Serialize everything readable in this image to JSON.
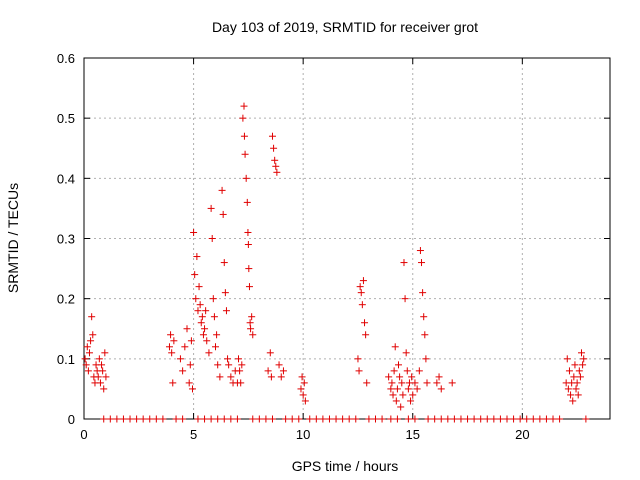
{
  "chart_data": {
    "type": "scatter",
    "title": "Day 103 of 2019, SRMTID for receiver grot",
    "xlabel": "GPS time / hours",
    "ylabel": "SRMTID / TECUs",
    "xlim": [
      0,
      24
    ],
    "ylim": [
      0,
      0.6
    ],
    "xticks": [
      0,
      5,
      10,
      15,
      20
    ],
    "yticks": [
      0,
      0.1,
      0.2,
      0.3,
      0.4,
      0.5,
      0.6
    ],
    "xtick_labels": [
      "0",
      "5",
      "10",
      "15",
      "20"
    ],
    "ytick_labels": [
      "0",
      "0.1",
      "0.2",
      "0.3",
      "0.4",
      "0.5",
      "0.6"
    ],
    "grid": true,
    "marker": "+",
    "color": "#e00000",
    "series": [
      {
        "name": "SRMTID",
        "points": [
          [
            0.05,
            0.1
          ],
          [
            0.1,
            0.09
          ],
          [
            0.15,
            0.12
          ],
          [
            0.2,
            0.08
          ],
          [
            0.25,
            0.11
          ],
          [
            0.3,
            0.13
          ],
          [
            0.35,
            0.17
          ],
          [
            0.4,
            0.14
          ],
          [
            0.45,
            0.07
          ],
          [
            0.5,
            0.06
          ],
          [
            0.55,
            0.09
          ],
          [
            0.6,
            0.08
          ],
          [
            0.65,
            0.07
          ],
          [
            0.7,
            0.1
          ],
          [
            0.75,
            0.06
          ],
          [
            0.8,
            0.09
          ],
          [
            0.85,
            0.08
          ],
          [
            0.9,
            0.05
          ],
          [
            0.95,
            0.11
          ],
          [
            1.0,
            0.07
          ],
          [
            3.9,
            0.12
          ],
          [
            3.95,
            0.14
          ],
          [
            4.0,
            0.11
          ],
          [
            4.05,
            0.06
          ],
          [
            4.1,
            0.13
          ],
          [
            4.4,
            0.1
          ],
          [
            4.5,
            0.08
          ],
          [
            4.6,
            0.12
          ],
          [
            4.7,
            0.15
          ],
          [
            4.8,
            0.06
          ],
          [
            4.85,
            0.09
          ],
          [
            4.9,
            0.13
          ],
          [
            4.95,
            0.05
          ],
          [
            5.0,
            0.31
          ],
          [
            5.05,
            0.24
          ],
          [
            5.1,
            0.2
          ],
          [
            5.15,
            0.27
          ],
          [
            5.2,
            0.18
          ],
          [
            5.25,
            0.22
          ],
          [
            5.3,
            0.19
          ],
          [
            5.35,
            0.16
          ],
          [
            5.4,
            0.17
          ],
          [
            5.45,
            0.14
          ],
          [
            5.5,
            0.15
          ],
          [
            5.55,
            0.18
          ],
          [
            5.6,
            0.13
          ],
          [
            5.7,
            0.11
          ],
          [
            5.8,
            0.35
          ],
          [
            5.85,
            0.3
          ],
          [
            5.9,
            0.2
          ],
          [
            5.95,
            0.17
          ],
          [
            6.0,
            0.12
          ],
          [
            6.05,
            0.14
          ],
          [
            6.1,
            0.09
          ],
          [
            6.2,
            0.07
          ],
          [
            6.3,
            0.38
          ],
          [
            6.35,
            0.34
          ],
          [
            6.4,
            0.26
          ],
          [
            6.45,
            0.21
          ],
          [
            6.5,
            0.18
          ],
          [
            6.55,
            0.1
          ],
          [
            6.6,
            0.09
          ],
          [
            6.7,
            0.07
          ],
          [
            6.8,
            0.06
          ],
          [
            6.9,
            0.08
          ],
          [
            7.0,
            0.06
          ],
          [
            7.05,
            0.1
          ],
          [
            7.1,
            0.08
          ],
          [
            7.15,
            0.06
          ],
          [
            7.2,
            0.09
          ],
          [
            7.25,
            0.5
          ],
          [
            7.3,
            0.52
          ],
          [
            7.32,
            0.47
          ],
          [
            7.35,
            0.44
          ],
          [
            7.4,
            0.4
          ],
          [
            7.45,
            0.36
          ],
          [
            7.48,
            0.31
          ],
          [
            7.5,
            0.29
          ],
          [
            7.52,
            0.25
          ],
          [
            7.55,
            0.22
          ],
          [
            7.58,
            0.16
          ],
          [
            7.6,
            0.15
          ],
          [
            7.65,
            0.17
          ],
          [
            7.7,
            0.14
          ],
          [
            8.4,
            0.08
          ],
          [
            8.5,
            0.11
          ],
          [
            8.55,
            0.07
          ],
          [
            8.6,
            0.47
          ],
          [
            8.65,
            0.45
          ],
          [
            8.7,
            0.43
          ],
          [
            8.75,
            0.42
          ],
          [
            8.8,
            0.41
          ],
          [
            8.9,
            0.09
          ],
          [
            9.0,
            0.07
          ],
          [
            9.1,
            0.08
          ],
          [
            9.9,
            0.05
          ],
          [
            9.95,
            0.07
          ],
          [
            10.0,
            0.04
          ],
          [
            10.05,
            0.06
          ],
          [
            10.1,
            0.03
          ],
          [
            12.5,
            0.1
          ],
          [
            12.55,
            0.08
          ],
          [
            12.6,
            0.22
          ],
          [
            12.65,
            0.21
          ],
          [
            12.7,
            0.19
          ],
          [
            12.75,
            0.23
          ],
          [
            12.8,
            0.16
          ],
          [
            12.85,
            0.14
          ],
          [
            12.9,
            0.06
          ],
          [
            13.9,
            0.07
          ],
          [
            14.0,
            0.05
          ],
          [
            14.05,
            0.06
          ],
          [
            14.1,
            0.04
          ],
          [
            14.15,
            0.08
          ],
          [
            14.2,
            0.12
          ],
          [
            14.25,
            0.03
          ],
          [
            14.3,
            0.05
          ],
          [
            14.35,
            0.09
          ],
          [
            14.4,
            0.07
          ],
          [
            14.45,
            0.02
          ],
          [
            14.5,
            0.06
          ],
          [
            14.55,
            0.04
          ],
          [
            14.6,
            0.26
          ],
          [
            14.65,
            0.2
          ],
          [
            14.7,
            0.11
          ],
          [
            14.75,
            0.08
          ],
          [
            14.8,
            0.05
          ],
          [
            14.85,
            0.06
          ],
          [
            14.9,
            0.03
          ],
          [
            14.95,
            0.07
          ],
          [
            15.0,
            0.04
          ],
          [
            15.1,
            0.06
          ],
          [
            15.2,
            0.05
          ],
          [
            15.3,
            0.08
          ],
          [
            15.35,
            0.28
          ],
          [
            15.4,
            0.26
          ],
          [
            15.45,
            0.21
          ],
          [
            15.5,
            0.17
          ],
          [
            15.55,
            0.14
          ],
          [
            15.6,
            0.1
          ],
          [
            15.65,
            0.06
          ],
          [
            16.1,
            0.06
          ],
          [
            16.2,
            0.07
          ],
          [
            16.3,
            0.05
          ],
          [
            16.8,
            0.06
          ],
          [
            22.0,
            0.06
          ],
          [
            22.05,
            0.1
          ],
          [
            22.1,
            0.05
          ],
          [
            22.15,
            0.08
          ],
          [
            22.2,
            0.04
          ],
          [
            22.25,
            0.06
          ],
          [
            22.3,
            0.03
          ],
          [
            22.35,
            0.07
          ],
          [
            22.4,
            0.09
          ],
          [
            22.45,
            0.05
          ],
          [
            22.5,
            0.06
          ],
          [
            22.55,
            0.04
          ],
          [
            22.6,
            0.08
          ],
          [
            22.65,
            0.07
          ],
          [
            22.7,
            0.11
          ],
          [
            22.75,
            0.09
          ],
          [
            22.8,
            0.1
          ]
        ]
      },
      {
        "name": "zero baseline",
        "points": [
          [
            0.9,
            0
          ],
          [
            1.2,
            0
          ],
          [
            1.5,
            0
          ],
          [
            1.8,
            0
          ],
          [
            2.1,
            0
          ],
          [
            2.4,
            0
          ],
          [
            2.7,
            0
          ],
          [
            3.0,
            0
          ],
          [
            3.3,
            0
          ],
          [
            3.6,
            0
          ],
          [
            4.2,
            0
          ],
          [
            4.5,
            0
          ],
          [
            5.2,
            0
          ],
          [
            5.5,
            0
          ],
          [
            5.8,
            0
          ],
          [
            6.1,
            0
          ],
          [
            6.4,
            0
          ],
          [
            6.7,
            0
          ],
          [
            7.0,
            0
          ],
          [
            7.7,
            0
          ],
          [
            8.0,
            0
          ],
          [
            8.3,
            0
          ],
          [
            8.6,
            0
          ],
          [
            9.2,
            0
          ],
          [
            9.5,
            0
          ],
          [
            9.8,
            0
          ],
          [
            10.3,
            0
          ],
          [
            10.6,
            0
          ],
          [
            10.9,
            0
          ],
          [
            11.2,
            0
          ],
          [
            11.5,
            0
          ],
          [
            11.8,
            0
          ],
          [
            12.1,
            0
          ],
          [
            12.4,
            0
          ],
          [
            13.0,
            0
          ],
          [
            13.3,
            0
          ],
          [
            13.6,
            0
          ],
          [
            14.0,
            0
          ],
          [
            14.3,
            0
          ],
          [
            14.8,
            0
          ],
          [
            15.1,
            0
          ],
          [
            15.7,
            0
          ],
          [
            16.0,
            0
          ],
          [
            16.3,
            0
          ],
          [
            16.6,
            0
          ],
          [
            16.9,
            0
          ],
          [
            17.2,
            0
          ],
          [
            17.5,
            0
          ],
          [
            17.8,
            0
          ],
          [
            18.1,
            0
          ],
          [
            18.4,
            0
          ],
          [
            18.7,
            0
          ],
          [
            19.0,
            0
          ],
          [
            19.3,
            0
          ],
          [
            19.6,
            0
          ],
          [
            19.9,
            0
          ],
          [
            20.2,
            0
          ],
          [
            20.5,
            0
          ],
          [
            20.8,
            0
          ],
          [
            21.1,
            0
          ],
          [
            21.4,
            0
          ],
          [
            21.7,
            0
          ],
          [
            22.9,
            0
          ]
        ]
      }
    ]
  }
}
